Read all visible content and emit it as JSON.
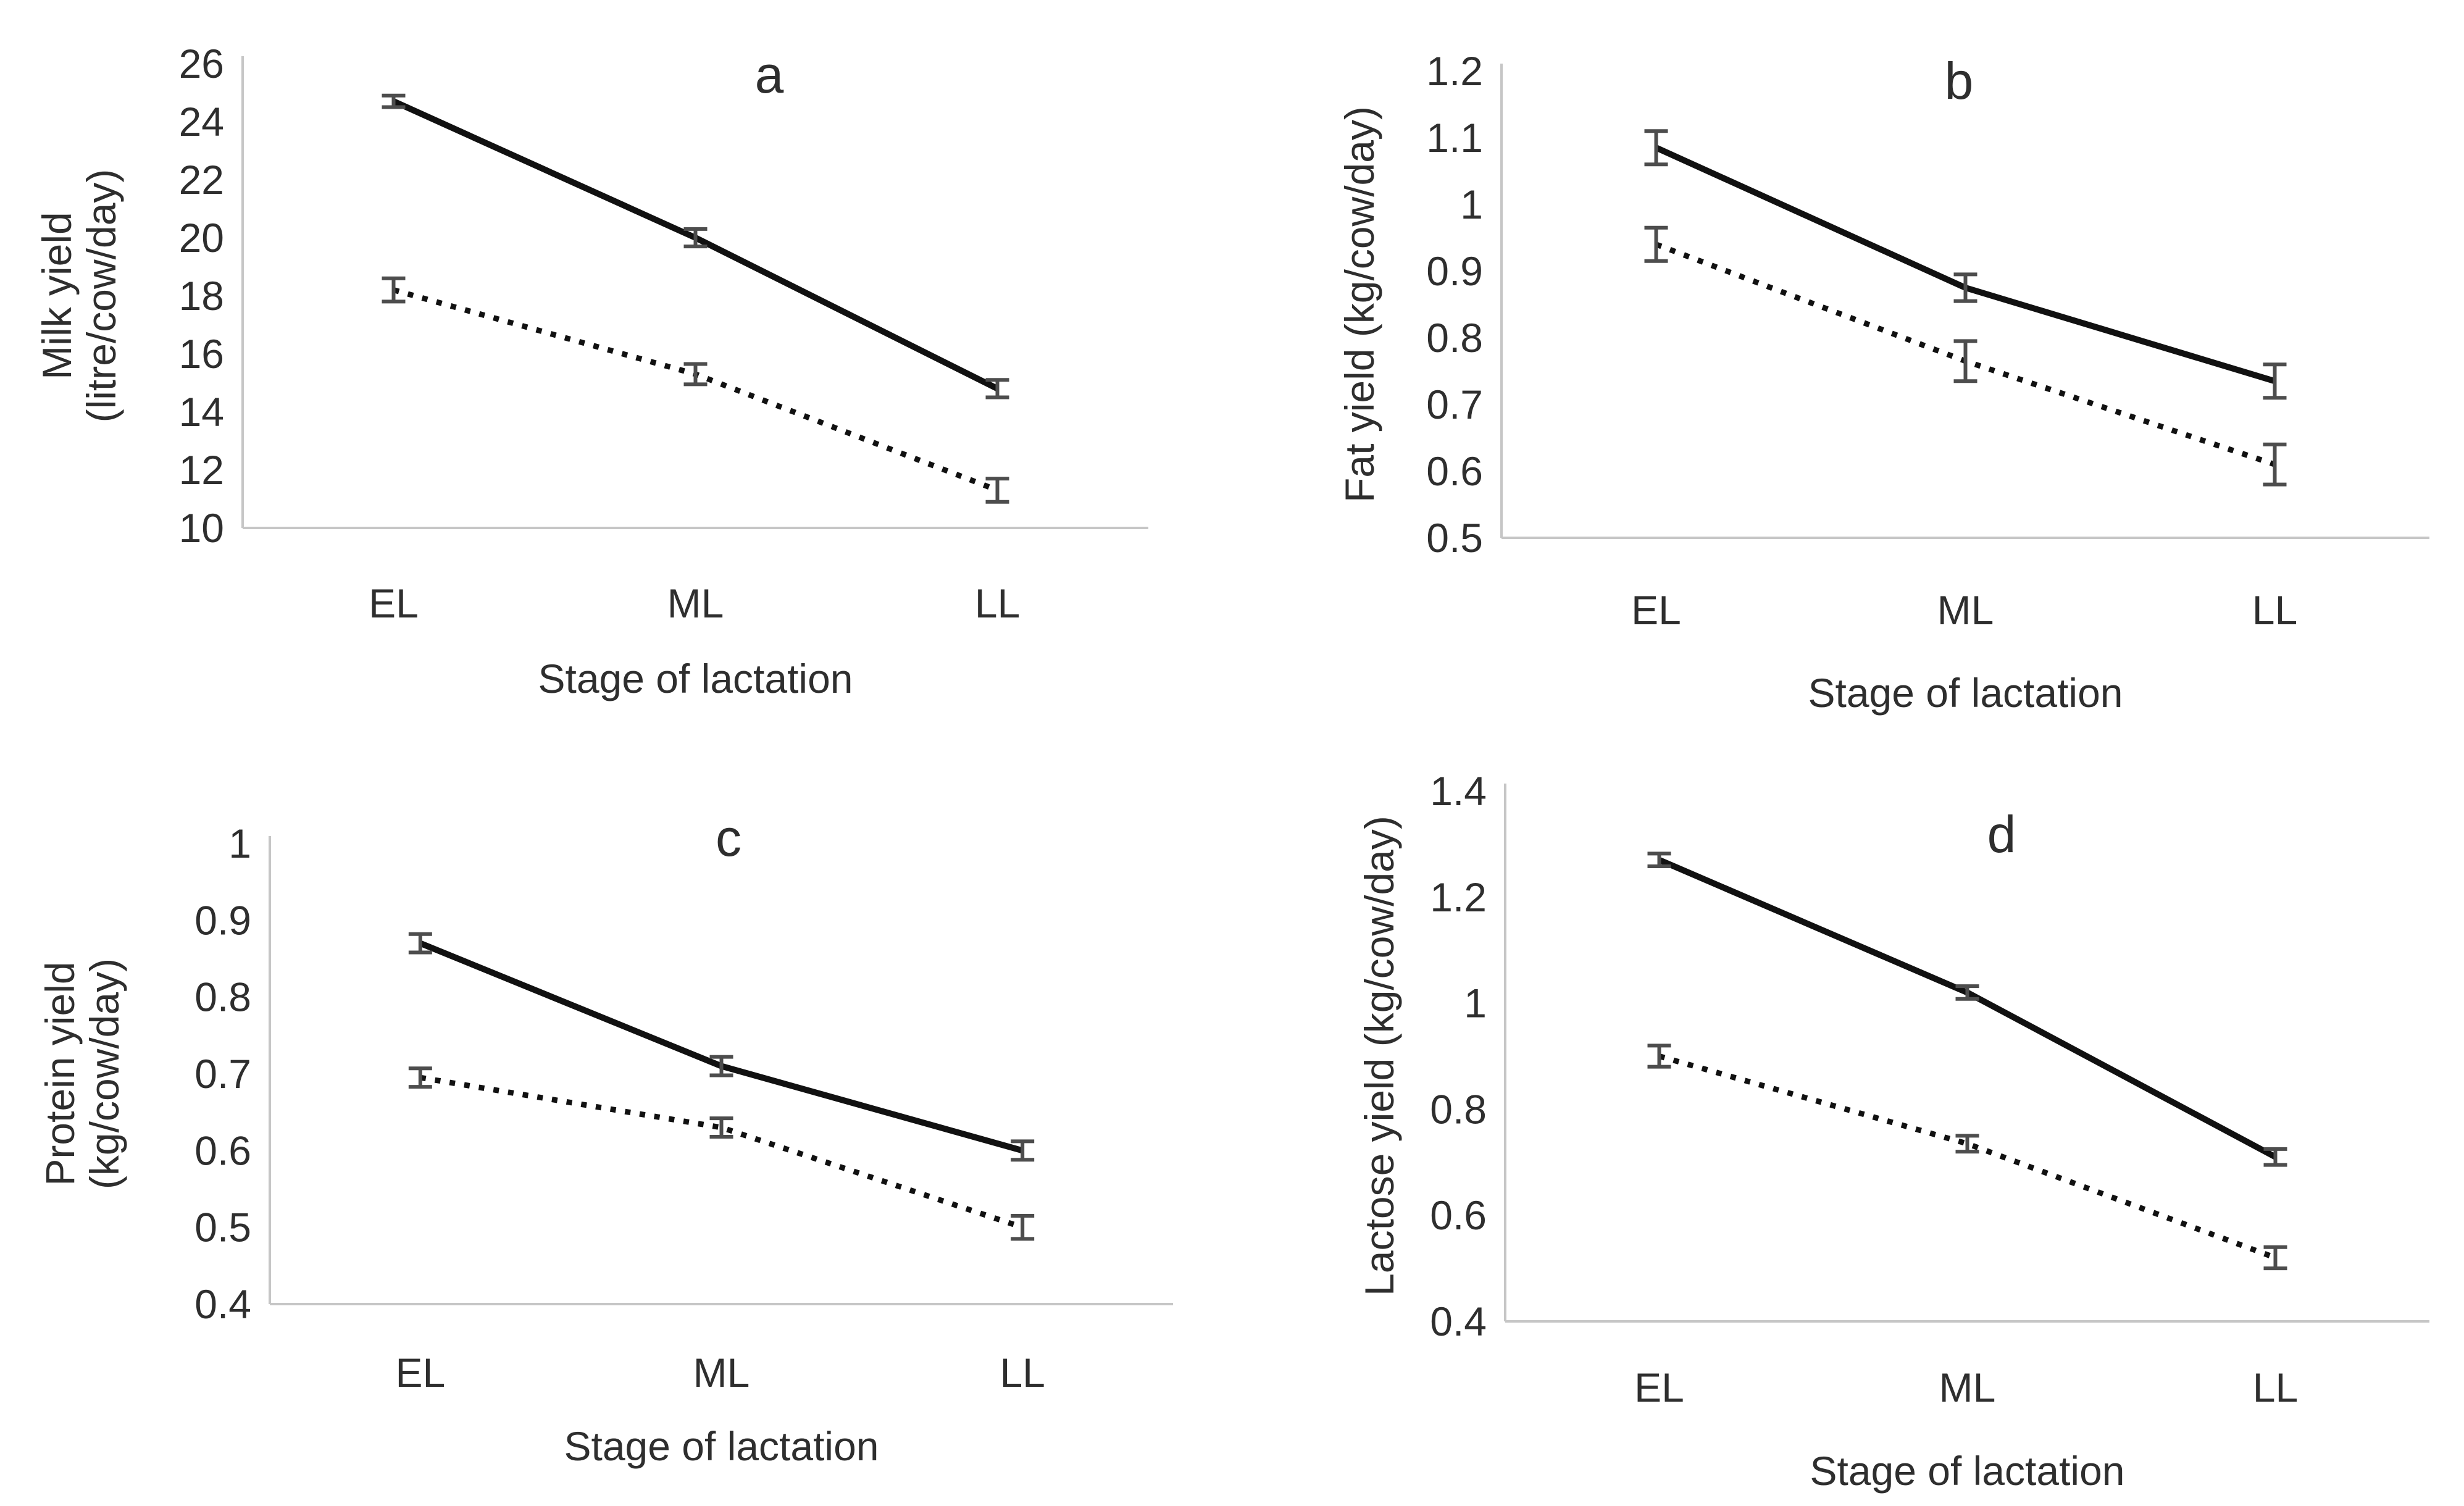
{
  "figure": {
    "background": "#ffffff",
    "text_color": "#2e2e2e",
    "axis_color": "#c6c6c6",
    "line_color": "#111111",
    "error_bar_color": "#4d4d4d",
    "x_axis_title": "Stage of lactation",
    "categories": [
      "EL",
      "ML",
      "LL"
    ]
  },
  "chart_data": [
    {
      "type": "line",
      "panel_label": "a",
      "ylabel_lines": [
        "Milk yield",
        "(litre/cow/day)"
      ],
      "xlabel": "Stage of lactation",
      "categories": [
        "EL",
        "ML",
        "LL"
      ],
      "ylim": [
        10,
        26
      ],
      "ytick_step": 2,
      "grid": false,
      "legend": "none",
      "series": [
        {
          "name": "solid line",
          "style": "solid",
          "values": [
            24.7,
            20.0,
            14.8
          ],
          "errors": [
            0.2,
            0.3,
            0.3
          ]
        },
        {
          "name": "dotted line",
          "style": "dotted",
          "values": [
            18.2,
            15.3,
            11.3
          ],
          "errors": [
            0.4,
            0.35,
            0.4
          ]
        }
      ]
    },
    {
      "type": "line",
      "panel_label": "b",
      "ylabel_lines": [
        "Fat yield (kg/cow/day)"
      ],
      "xlabel": "Stage of lactation",
      "categories": [
        "EL",
        "ML",
        "LL"
      ],
      "ylim": [
        0.5,
        1.2
      ],
      "ytick_step": 0.1,
      "grid": false,
      "legend": "none",
      "series": [
        {
          "name": "solid line",
          "style": "solid",
          "values": [
            1.085,
            0.875,
            0.735
          ],
          "errors": [
            0.025,
            0.02,
            0.025
          ]
        },
        {
          "name": "dotted line",
          "style": "dotted",
          "values": [
            0.94,
            0.765,
            0.61
          ],
          "errors": [
            0.025,
            0.03,
            0.03
          ]
        }
      ]
    },
    {
      "type": "line",
      "panel_label": "c",
      "ylabel_lines": [
        "Protein yield",
        "(kg/cow/day)"
      ],
      "xlabel": "Stage of lactation",
      "categories": [
        "EL",
        "ML",
        "LL"
      ],
      "ylim": [
        0.4,
        1.0
      ],
      "ytick_step": 0.1,
      "grid": false,
      "legend": "none",
      "series": [
        {
          "name": "solid line",
          "style": "solid",
          "values": [
            0.87,
            0.71,
            0.6
          ],
          "errors": [
            0.012,
            0.012,
            0.012
          ]
        },
        {
          "name": "dotted line",
          "style": "dotted",
          "values": [
            0.695,
            0.63,
            0.5
          ],
          "errors": [
            0.012,
            0.012,
            0.015
          ]
        }
      ]
    },
    {
      "type": "line",
      "panel_label": "d",
      "ylabel_lines": [
        "Lactose yield (kg/cow/day)"
      ],
      "xlabel": "Stage of lactation",
      "categories": [
        "EL",
        "ML",
        "LL"
      ],
      "ylim": [
        0.4,
        1.4
      ],
      "ytick_step": 0.2,
      "grid": false,
      "legend": "none",
      "series": [
        {
          "name": "solid line",
          "style": "solid",
          "values": [
            1.27,
            1.02,
            0.71
          ],
          "errors": [
            0.012,
            0.012,
            0.015
          ]
        },
        {
          "name": "dotted line",
          "style": "dotted",
          "values": [
            0.9,
            0.735,
            0.52
          ],
          "errors": [
            0.02,
            0.015,
            0.02
          ]
        }
      ]
    }
  ]
}
